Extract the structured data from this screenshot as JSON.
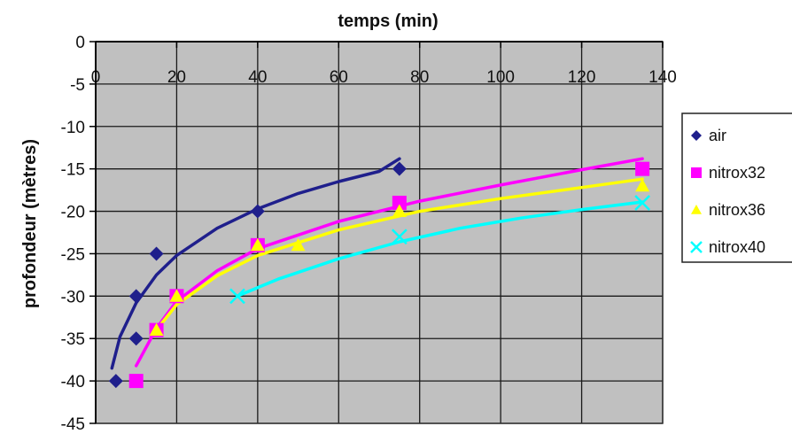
{
  "chart_data": {
    "type": "scatter",
    "xlabel": "temps (min)",
    "ylabel": "profondeur (mètres)",
    "xlim": [
      0,
      140
    ],
    "ylim": [
      -45,
      0
    ],
    "x_ticks": [
      0,
      20,
      40,
      60,
      80,
      100,
      120,
      140
    ],
    "y_ticks": [
      0,
      -5,
      -10,
      -15,
      -20,
      -25,
      -30,
      -35,
      -40,
      -45
    ],
    "grid": true,
    "x_axis_position": "top",
    "legend_position": "right",
    "plot_background": "#c0c0c0",
    "series": [
      {
        "name": "air",
        "marker": "diamond",
        "color": "#1f1f8c",
        "points": [
          [
            5,
            -40
          ],
          [
            10,
            -35
          ],
          [
            10,
            -30
          ],
          [
            15,
            -25
          ],
          [
            40,
            -20
          ],
          [
            75,
            -15
          ]
        ],
        "trendline": [
          [
            4,
            -38.5
          ],
          [
            6,
            -34.8
          ],
          [
            10,
            -30.8
          ],
          [
            15,
            -27.5
          ],
          [
            20,
            -25.2
          ],
          [
            30,
            -22.0
          ],
          [
            40,
            -19.7
          ],
          [
            50,
            -17.9
          ],
          [
            60,
            -16.5
          ],
          [
            70,
            -15.3
          ],
          [
            75,
            -13.8
          ]
        ]
      },
      {
        "name": "nitrox32",
        "marker": "square",
        "color": "#ff00ff",
        "points": [
          [
            10,
            -40
          ],
          [
            15,
            -34
          ],
          [
            20,
            -30
          ],
          [
            40,
            -24
          ],
          [
            75,
            -19
          ],
          [
            135,
            -15
          ]
        ],
        "trendline": [
          [
            10,
            -38.2
          ],
          [
            15,
            -33.8
          ],
          [
            20,
            -30.6
          ],
          [
            30,
            -27.0
          ],
          [
            40,
            -24.4
          ],
          [
            60,
            -21.2
          ],
          [
            80,
            -18.8
          ],
          [
            100,
            -16.9
          ],
          [
            120,
            -15.1
          ],
          [
            135,
            -13.8
          ]
        ]
      },
      {
        "name": "nitrox36",
        "marker": "triangle",
        "color": "#ffff00",
        "points": [
          [
            15,
            -34
          ],
          [
            20,
            -30
          ],
          [
            40,
            -24
          ],
          [
            50,
            -24
          ],
          [
            75,
            -20
          ],
          [
            135,
            -17
          ]
        ],
        "trendline": [
          [
            15,
            -34.0
          ],
          [
            20,
            -31.0
          ],
          [
            30,
            -27.6
          ],
          [
            40,
            -25.2
          ],
          [
            60,
            -22.2
          ],
          [
            80,
            -20.0
          ],
          [
            100,
            -18.5
          ],
          [
            120,
            -17.2
          ],
          [
            135,
            -16.2
          ]
        ]
      },
      {
        "name": "nitrox40",
        "marker": "x",
        "color": "#00ffff",
        "points": [
          [
            35,
            -30
          ],
          [
            75,
            -23
          ],
          [
            135,
            -19
          ]
        ],
        "trendline": [
          [
            35,
            -30.0
          ],
          [
            45,
            -28.0
          ],
          [
            60,
            -25.6
          ],
          [
            75,
            -23.6
          ],
          [
            90,
            -22.0
          ],
          [
            105,
            -20.8
          ],
          [
            120,
            -19.8
          ],
          [
            135,
            -18.9
          ]
        ]
      }
    ]
  }
}
